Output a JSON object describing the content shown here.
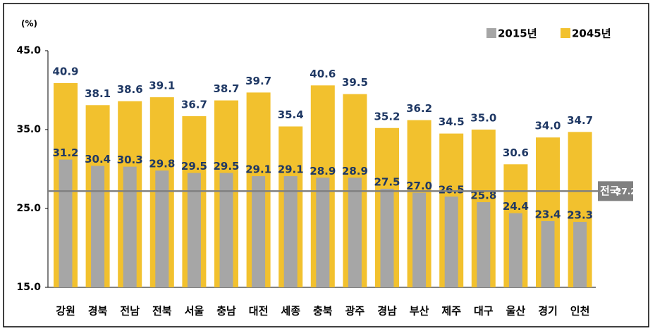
{
  "chart_data": {
    "type": "bar",
    "y_label": "(%)",
    "categories": [
      "강원",
      "경북",
      "전남",
      "전북",
      "서울",
      "충남",
      "대전",
      "세종",
      "충북",
      "광주",
      "경남",
      "부산",
      "제주",
      "대구",
      "울산",
      "경기",
      "인천"
    ],
    "series": [
      {
        "name": "2015년",
        "color": "#a6a6a6",
        "values": [
          31.2,
          30.4,
          30.3,
          29.8,
          29.5,
          29.5,
          29.1,
          29.1,
          28.9,
          28.9,
          27.5,
          27.0,
          26.5,
          25.8,
          24.4,
          23.4,
          23.3
        ],
        "value_labels": [
          "31.2",
          "30.4",
          "30.3",
          "29.8",
          "29.5",
          "29.5",
          "29.1",
          "29.1",
          "28.9",
          "28.9",
          "27.5",
          "27.0",
          "26.5",
          "25.8",
          "24.4",
          "23.4",
          "23.3"
        ]
      },
      {
        "name": "2045년",
        "color": "#f2c12e",
        "values": [
          40.9,
          38.1,
          38.6,
          39.1,
          36.7,
          38.7,
          39.7,
          35.4,
          40.6,
          39.5,
          35.2,
          36.2,
          34.5,
          35.0,
          30.6,
          34.0,
          34.7
        ],
        "value_labels": [
          "40.9",
          "38.1",
          "38.6",
          "39.1",
          "36.7",
          "38.7",
          "39.7",
          "35.4",
          "40.6",
          "39.5",
          "35.2",
          "36.2",
          "34.5",
          "35.0",
          "30.6",
          "34.0",
          "34.7"
        ]
      }
    ],
    "reference": {
      "label": "전국",
      "value": 27.2,
      "color": "#808080"
    },
    "ylim": [
      15,
      45
    ],
    "yticks": [
      {
        "value": 15,
        "label": "15.0"
      },
      {
        "value": 25,
        "label": "25.0"
      },
      {
        "value": 35,
        "label": "35.0"
      },
      {
        "value": 45,
        "label": "45.0"
      }
    ],
    "legend": "top-right"
  }
}
